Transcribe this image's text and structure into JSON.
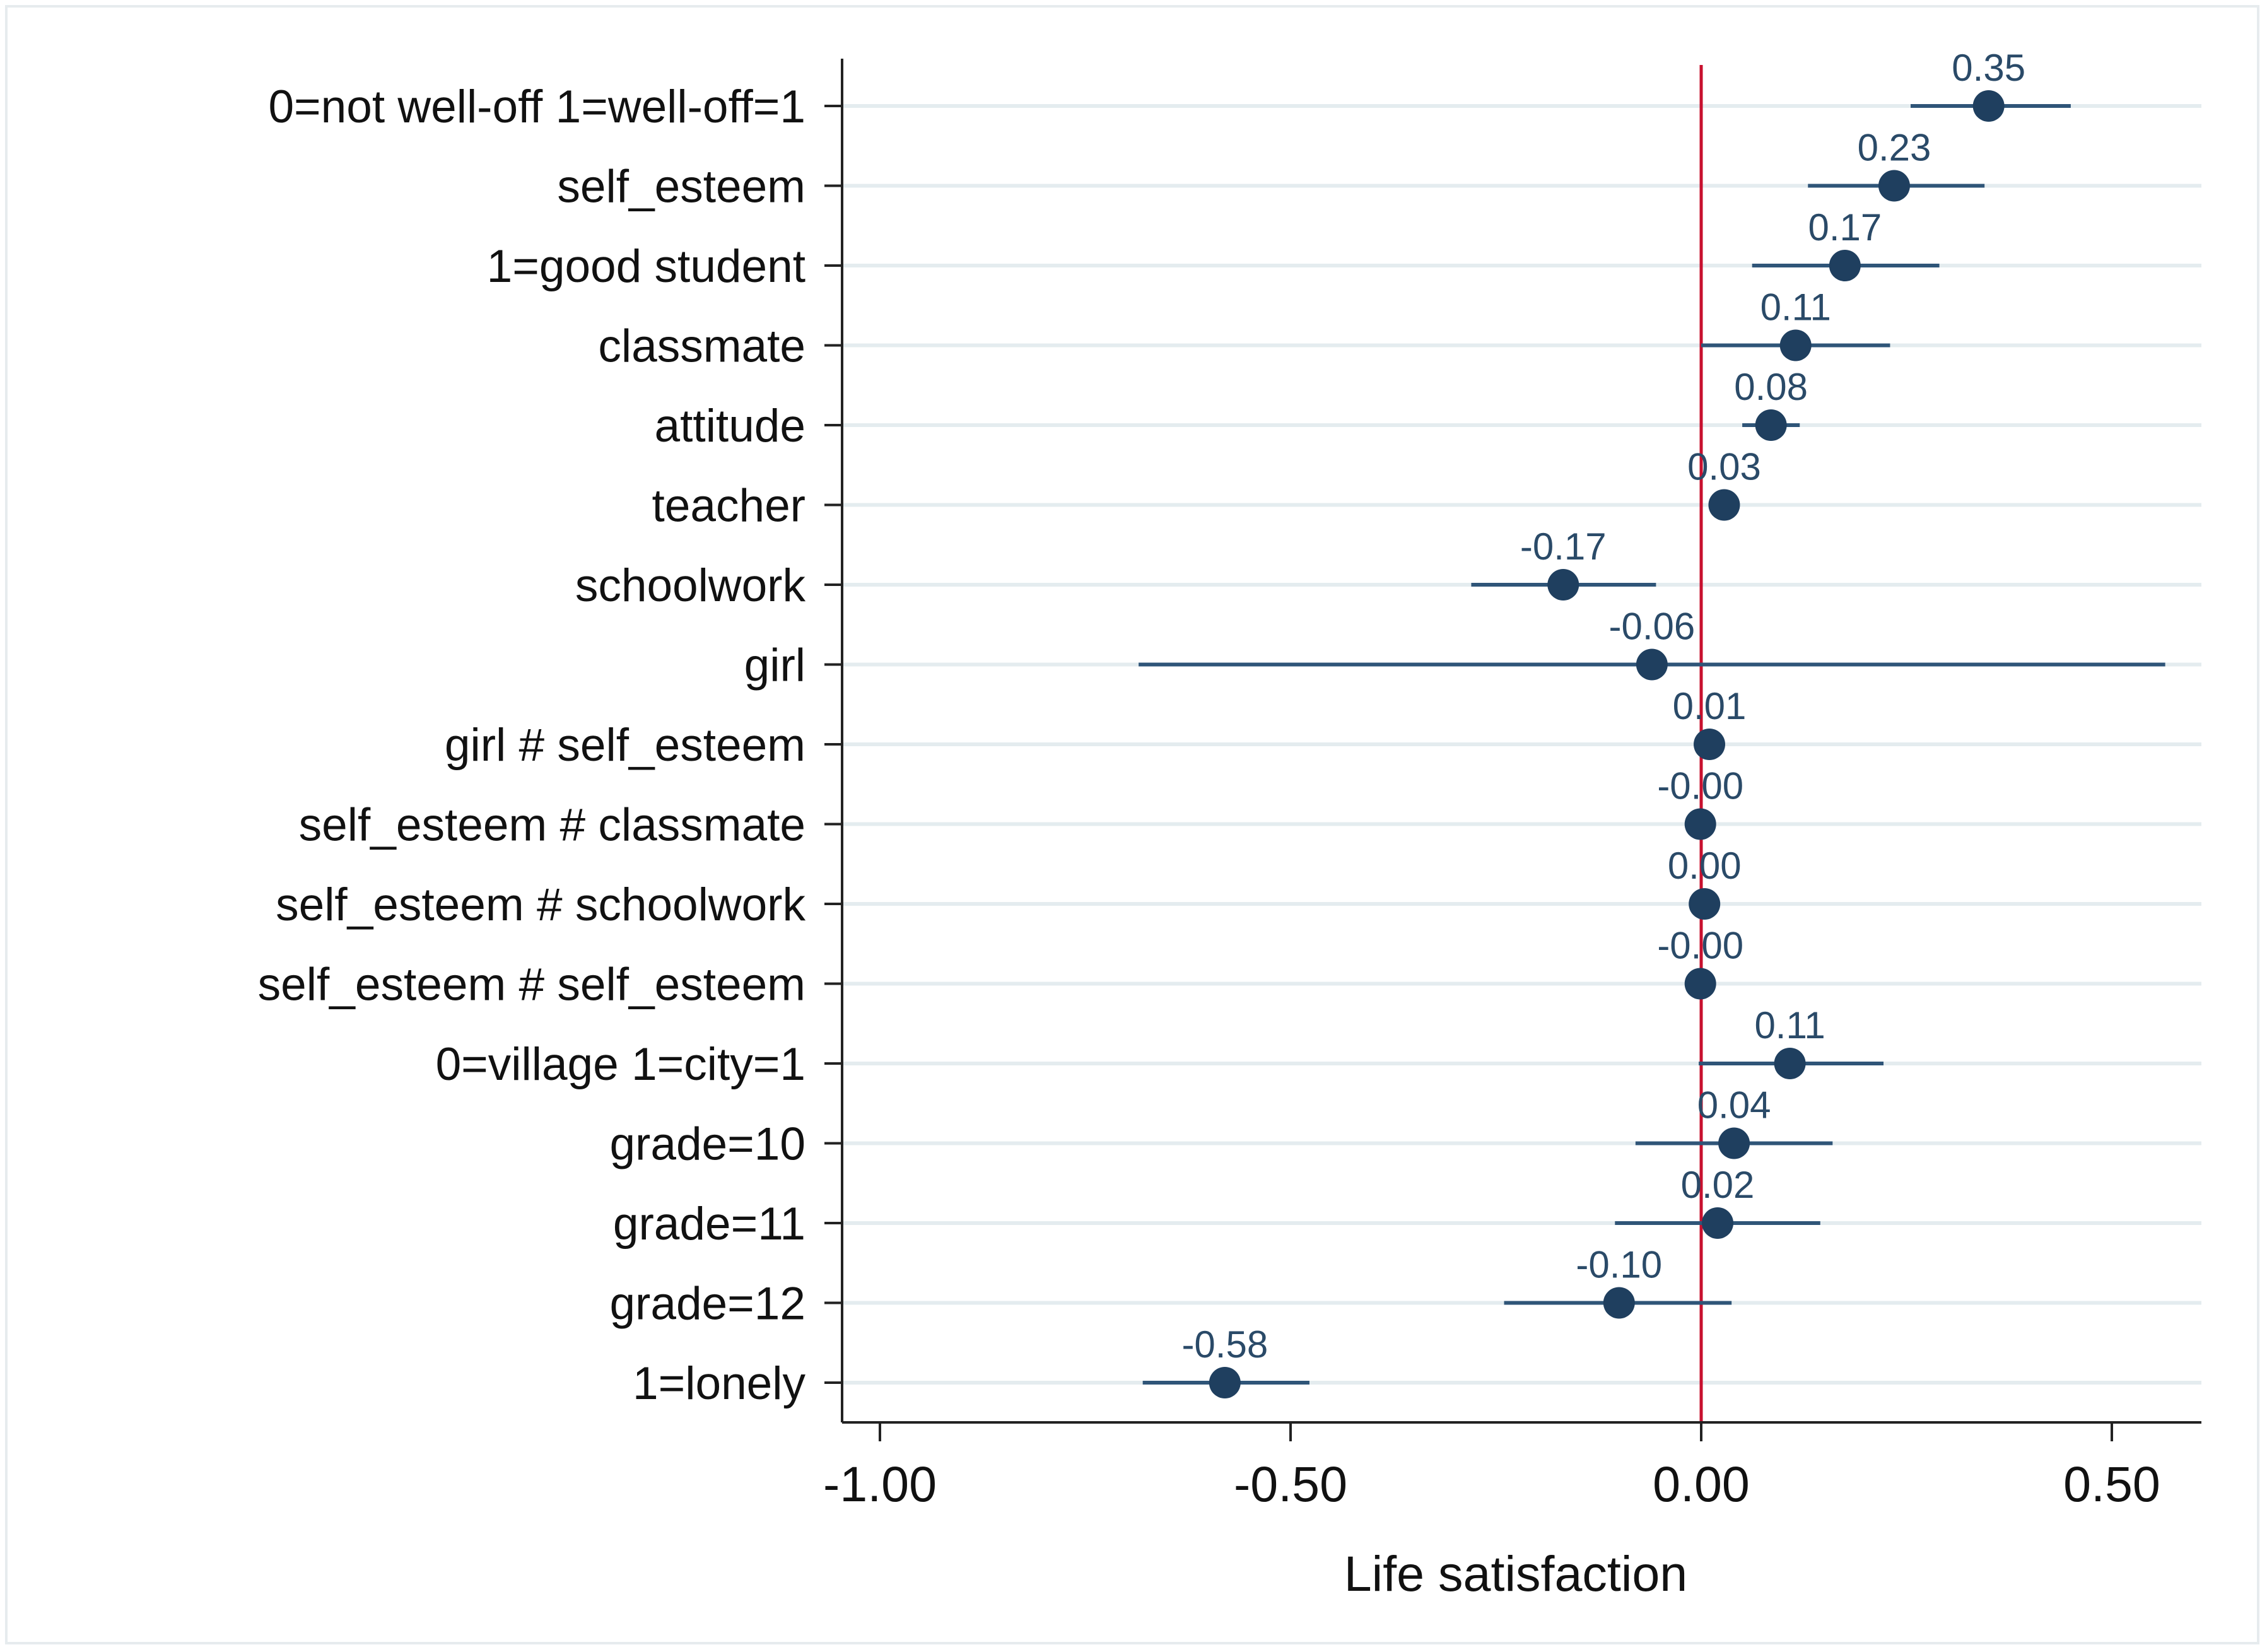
{
  "chart_data": {
    "type": "coefficient-plot",
    "title": "",
    "xlabel": "Life satisfaction",
    "ylabel": "",
    "xlim": [
      -1.05,
      0.6
    ],
    "xticks": [
      -1.0,
      -0.5,
      0.0,
      0.5
    ],
    "xtick_labels": [
      "-1.00",
      "-0.50",
      "0.00",
      "0.50"
    ],
    "reference_line": 0.0,
    "grid": "horizontal",
    "colors": {
      "marker": "#1f3f5f",
      "ci": "#2f5578",
      "reference_line": "#c8102e",
      "grid": "#e4ecef",
      "axis": "#222222",
      "label": "#2a4a68"
    },
    "series": [
      {
        "label": "0=not well-off 1=well-off=1",
        "coef": 0.35,
        "value_label": "0.35",
        "ci": [
          0.255,
          0.45
        ]
      },
      {
        "label": "self_esteem",
        "coef": 0.235,
        "value_label": "0.23",
        "ci": [
          0.13,
          0.345
        ]
      },
      {
        "label": "1=good student",
        "coef": 0.175,
        "value_label": "0.17",
        "ci": [
          0.062,
          0.29
        ]
      },
      {
        "label": "classmate",
        "coef": 0.115,
        "value_label": "0.11",
        "ci": [
          0.0,
          0.23
        ]
      },
      {
        "label": "attitude",
        "coef": 0.085,
        "value_label": "0.08",
        "ci": [
          0.05,
          0.12
        ]
      },
      {
        "label": "teacher",
        "coef": 0.028,
        "value_label": "0.03",
        "ci": [
          0.02,
          0.036
        ]
      },
      {
        "label": "schoolwork",
        "coef": -0.168,
        "value_label": "-0.17",
        "ci": [
          -0.28,
          -0.055
        ]
      },
      {
        "label": "girl",
        "coef": -0.06,
        "value_label": "-0.06",
        "ci": [
          -0.685,
          0.565
        ]
      },
      {
        "label": "girl # self_esteem",
        "coef": 0.01,
        "value_label": "0.01",
        "ci": [
          0.004,
          0.016
        ]
      },
      {
        "label": "self_esteem # classmate",
        "coef": -0.001,
        "value_label": "-0.00",
        "ci": [
          -0.004,
          0.002
        ]
      },
      {
        "label": "self_esteem # schoolwork",
        "coef": 0.004,
        "value_label": "0.00",
        "ci": [
          0.001,
          0.007
        ]
      },
      {
        "label": "self_esteem # self_esteem",
        "coef": -0.001,
        "value_label": "-0.00",
        "ci": [
          -0.003,
          0.001
        ]
      },
      {
        "label": "0=village 1=city=1",
        "coef": 0.108,
        "value_label": "0.11",
        "ci": [
          -0.003,
          0.222
        ]
      },
      {
        "label": "grade=10",
        "coef": 0.04,
        "value_label": "0.04",
        "ci": [
          -0.08,
          0.16
        ]
      },
      {
        "label": "grade=11",
        "coef": 0.02,
        "value_label": "0.02",
        "ci": [
          -0.105,
          0.145
        ]
      },
      {
        "label": "grade=12",
        "coef": -0.1,
        "value_label": "-0.10",
        "ci": [
          -0.24,
          0.037
        ]
      },
      {
        "label": "1=lonely",
        "coef": -0.58,
        "value_label": "-0.58",
        "ci": [
          -0.68,
          -0.477
        ]
      }
    ]
  }
}
